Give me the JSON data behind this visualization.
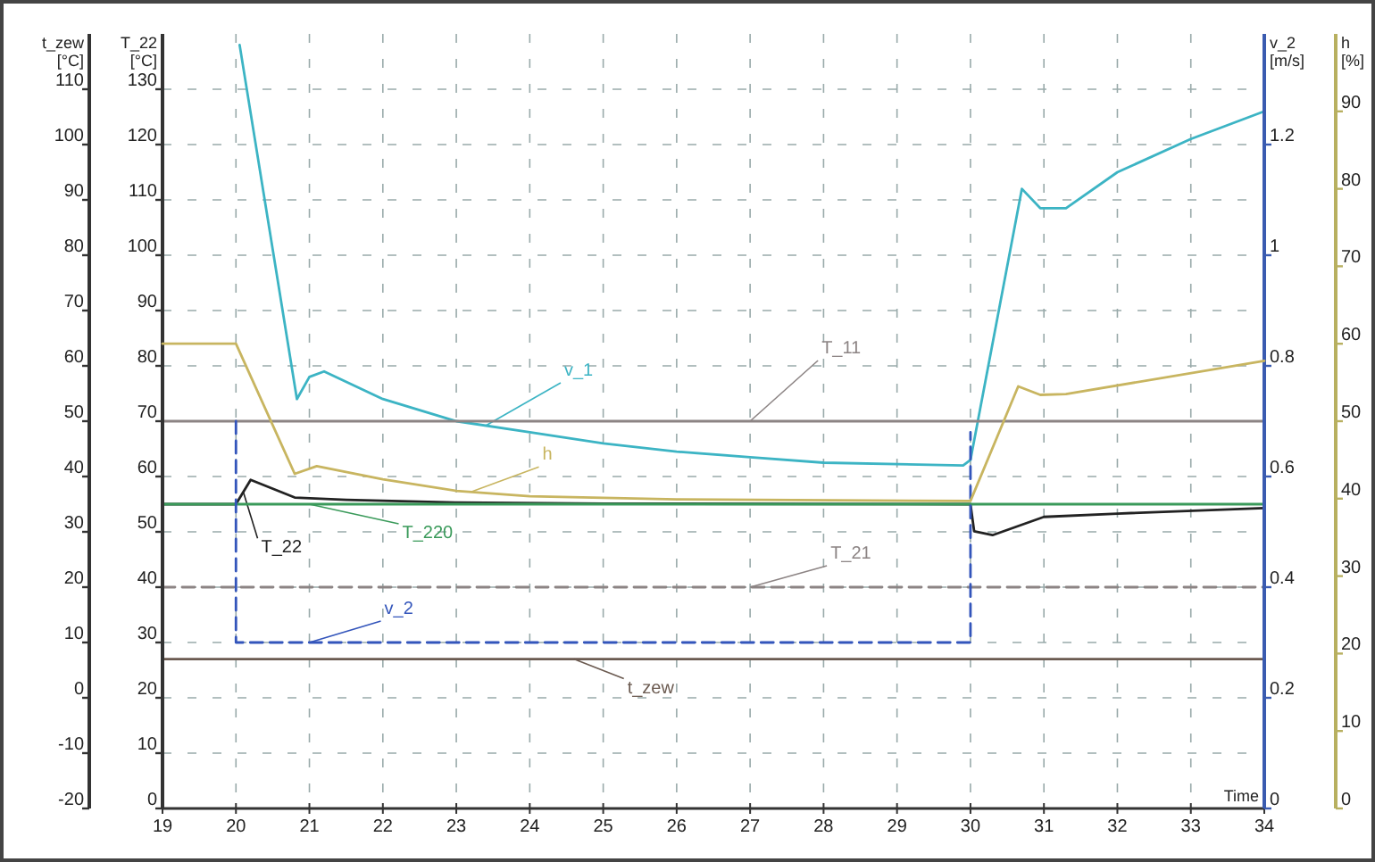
{
  "chart_data": [
    {
      "type": "line",
      "xlabel": "Time",
      "ylabel": "T_22 [°C]",
      "y2label": "t_zew [°C]",
      "y3label": "v_2 [m/s]",
      "xlim": [
        19,
        34
      ],
      "xticks": [
        19,
        20,
        21,
        22,
        23,
        24,
        25,
        26,
        27,
        28,
        29,
        30,
        31,
        32,
        33,
        34
      ],
      "ylim": [
        0,
        140
      ],
      "yticks": [
        0,
        10,
        20,
        30,
        40,
        50,
        60,
        70,
        80,
        90,
        100,
        110,
        120,
        130
      ],
      "y2lim": [
        -20,
        120
      ],
      "y2ticks": [
        -20,
        -10,
        0,
        10,
        20,
        30,
        40,
        50,
        60,
        70,
        80,
        90,
        100,
        110
      ],
      "y3lim": [
        0,
        1.4
      ],
      "y3ticks": [
        0,
        0.2,
        0.4,
        0.6,
        0.8,
        1,
        1.2
      ],
      "grid": true,
      "marker": "none",
      "series": [
        {
          "name": "v_1",
          "color": "#3cb4c4",
          "axis": "y3",
          "x": [
            20.05,
            20.83,
            21.0,
            21.2,
            22,
            23,
            24,
            25,
            26,
            27,
            28,
            29.9,
            30,
            30.7,
            30.95,
            31.3,
            32,
            33,
            34
          ],
          "values": [
            1.38,
            0.74,
            0.78,
            0.79,
            0.74,
            0.7,
            0.68,
            0.66,
            0.645,
            0.635,
            0.625,
            0.62,
            0.63,
            1.12,
            1.085,
            1.085,
            1.15,
            1.21,
            1.26
          ]
        },
        {
          "name": "T_11",
          "color": "#8c8484",
          "x": [
            19,
            34
          ],
          "values": [
            70,
            70
          ]
        },
        {
          "name": "T_22",
          "color": "#222222",
          "x": [
            19,
            20,
            20.2,
            20.8,
            21.5,
            23,
            25,
            30,
            30.05,
            30.3,
            31,
            32,
            34
          ],
          "values": [
            55,
            55,
            59.4,
            56.2,
            55.8,
            55.3,
            55.1,
            55,
            50.1,
            49.4,
            52.7,
            53.3,
            54.3
          ]
        },
        {
          "name": "T_220",
          "color": "#3a9a5a",
          "x": [
            19,
            34
          ],
          "values": [
            55,
            55
          ]
        },
        {
          "name": "T_21",
          "color": "#8c8484",
          "line_style": "dashed",
          "x": [
            19,
            34
          ],
          "values": [
            40,
            40
          ]
        },
        {
          "name": "v_2",
          "color": "#3355bb",
          "axis": "y3",
          "line_style": "dashed",
          "x": [
            20,
            20,
            30,
            30
          ],
          "values": [
            0.7,
            0.3,
            0.3,
            0.68
          ]
        },
        {
          "name": "t_zew",
          "color": "#6b5a50",
          "axis": "y2",
          "x": [
            19,
            34
          ],
          "values": [
            7,
            7
          ]
        }
      ]
    },
    {
      "type": "line",
      "ylabel": "h [%]",
      "xlim": [
        19,
        34
      ],
      "ylim": [
        0,
        100
      ],
      "yticks": [
        0,
        10,
        20,
        30,
        40,
        50,
        60,
        70,
        80,
        90
      ],
      "tick_labels": "y",
      "marker": "none",
      "series": [
        {
          "name": "h",
          "color": "#c8b560",
          "x": [
            19,
            20,
            20.8,
            21.1,
            22,
            23,
            24,
            26,
            30,
            30.65,
            30.95,
            31.3,
            34
          ],
          "values": [
            60,
            60,
            43.2,
            44.2,
            42.5,
            41,
            40.3,
            39.9,
            39.7,
            54.5,
            53.4,
            53.5,
            57.8
          ]
        }
      ]
    }
  ]
}
